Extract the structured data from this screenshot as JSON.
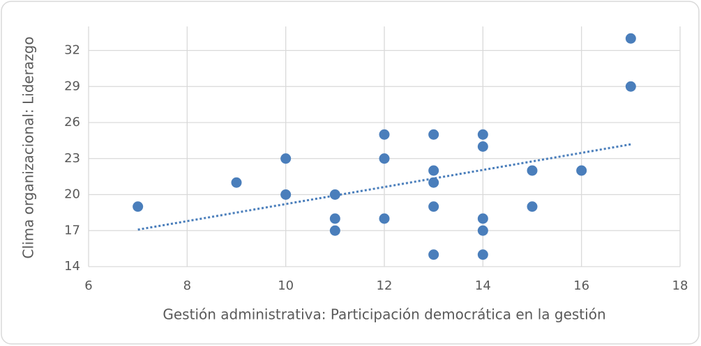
{
  "chart_data": {
    "type": "scatter",
    "x_label": "Gestión administrativa: Participación democrática en la gestión",
    "y_label": "Clima organizacional: Liderazgo",
    "x": [
      7,
      9,
      10,
      10,
      11,
      11,
      11,
      12,
      12,
      12,
      13,
      13,
      13,
      13,
      13,
      14,
      14,
      14,
      14,
      14,
      15,
      15,
      16,
      17,
      17
    ],
    "values": [
      19,
      21,
      23,
      20,
      20,
      18,
      17,
      25,
      23,
      18,
      25,
      22,
      21,
      19,
      15,
      25,
      24,
      18,
      17,
      15,
      22,
      19,
      22,
      33,
      29
    ],
    "color": "#4a7ebb",
    "trendline": "linear",
    "xlim": [
      6,
      18
    ],
    "xticks": [
      6,
      8,
      10,
      12,
      14,
      16,
      18
    ],
    "ylim": [
      14,
      34
    ],
    "yticks": [
      14,
      17,
      20,
      23,
      26,
      29,
      32
    ],
    "grid": true
  }
}
